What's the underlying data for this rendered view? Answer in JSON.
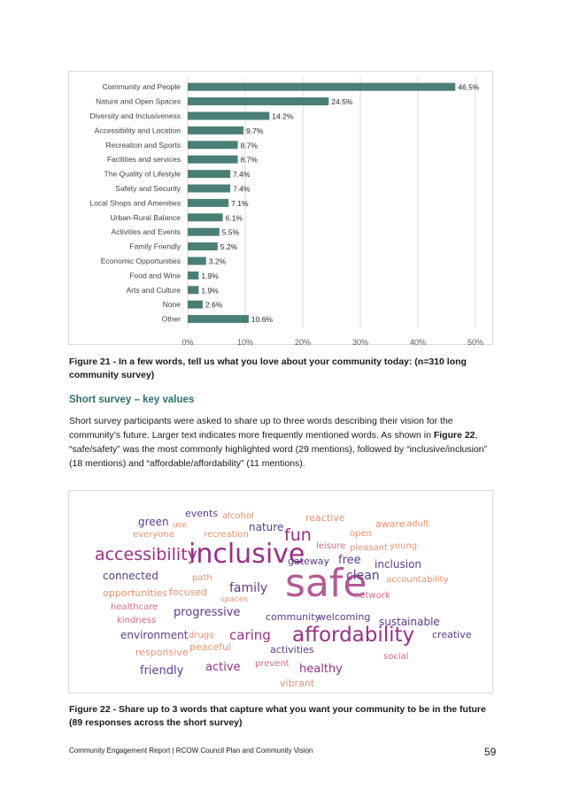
{
  "chart_data": {
    "type": "bar",
    "orientation": "horizontal",
    "categories": [
      "Community and People",
      "Nature and Open Spaces",
      "Diversity and Inclusiveness",
      "Accessibility and Location",
      "Recreation and Sports",
      "Facilities and services",
      "The Quality of  Lifestyle",
      "Safety and Security",
      "Local Shops and Amenities",
      "Urban-Rural Balance",
      "Activities and Events",
      "Family Friendly",
      "Economic Opportunities",
      "Food and Wine",
      "Arts and Culture",
      "None",
      "Other"
    ],
    "values": [
      46.5,
      24.5,
      14.2,
      9.7,
      8.7,
      8.7,
      7.4,
      7.4,
      7.1,
      6.1,
      5.5,
      5.2,
      3.2,
      1.9,
      1.9,
      2.6,
      10.6
    ],
    "value_labels": [
      "46.5%",
      "24.5%",
      "14.2%",
      "9.7%",
      "8.7%",
      "8.7%",
      "7.4%",
      "7.4%",
      "7.1%",
      "6.1%",
      "5.5%",
      "5.2%",
      "3.2%",
      "1.9%",
      "1.9%",
      "2.6%",
      "10.6%"
    ],
    "xlim": [
      0,
      50
    ],
    "x_ticks": [
      "0%",
      "10%",
      "20%",
      "30%",
      "40%",
      "50%"
    ],
    "bar_color": "#4a7f78",
    "grid": true,
    "title": "",
    "xlabel": "",
    "ylabel": ""
  },
  "figure21_caption": "Figure 21 - In a few words, tell us what you love about your community today: (n=310 long community survey)",
  "section_heading": "Short survey – key values",
  "body": {
    "p1": "Short survey participants were asked to share up to three words describing their vision for the community’s future. Larger text indicates more frequently mentioned words. As shown in ",
    "fig_ref": "Figure 22",
    "p2": ", “safe/safety” was the most commonly highlighted word (29 mentions), followed by “inclusive/inclusion” (18 mentions) and “affordable/affordability” (11 mentions)."
  },
  "word_cloud": {
    "words": [
      "events",
      "alcohol",
      "reactive",
      "green",
      "use",
      "nature",
      "aware",
      "adult",
      "everyone",
      "recreation",
      "fun",
      "open",
      "leisure",
      "pleasant",
      "young",
      "accessibility",
      "inclusive",
      "gateway",
      "free",
      "inclusion",
      "connected",
      "path",
      "safe",
      "clean",
      "accountability",
      "opportunities",
      "focused",
      "family",
      "network",
      "spaces",
      "healthcare",
      "progressive",
      "kindness",
      "community",
      "welcoming",
      "sustainable",
      "environment",
      "drugs",
      "caring",
      "affordability",
      "creative",
      "responsive",
      "peaceful",
      "activities",
      "social",
      "prevent",
      "friendly",
      "active",
      "healthy",
      "vibrant"
    ],
    "colors": {
      "dark_purple": "#5e3a8c",
      "magenta": "#9b2f86",
      "salmon": "#e8926e",
      "pink": "#d66a8a",
      "mauve": "#b35a96"
    }
  },
  "figure22_caption": "Figure 22 - Share up to 3 words that capture what you want your community to be in the future (89 responses across the short survey)",
  "footer": "Community Engagement Report | RCOW Council Plan and Community Vision",
  "page_number": "59"
}
